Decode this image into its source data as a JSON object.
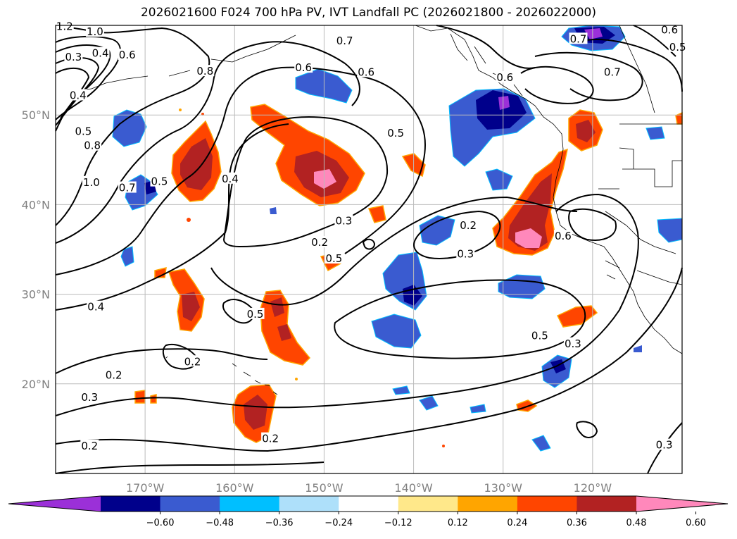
{
  "title": "2026021600 F024 700 hPa PV, IVT Landfall PC (2026021800 - 2026022000)",
  "map": {
    "lon_range": [
      -180,
      -110
    ],
    "lat_range": [
      10,
      60
    ],
    "lat_ticks": [
      {
        "value": 50,
        "label": "50°N"
      },
      {
        "value": 40,
        "label": "40°N"
      },
      {
        "value": 30,
        "label": "30°N"
      },
      {
        "value": 20,
        "label": "20°N"
      }
    ],
    "lon_ticks": [
      {
        "value": -170,
        "label": "170°W"
      },
      {
        "value": -160,
        "label": "160°W"
      },
      {
        "value": -150,
        "label": "150°W"
      },
      {
        "value": -140,
        "label": "140°W"
      },
      {
        "value": -130,
        "label": "130°W"
      },
      {
        "value": -120,
        "label": "120°W"
      }
    ],
    "contour_labels": [
      {
        "text": "1.2",
        "lon": -179,
        "lat": 59.8
      },
      {
        "text": "1.0",
        "lon": -175.6,
        "lat": 59.2
      },
      {
        "text": "0.3",
        "lon": -178,
        "lat": 56.4
      },
      {
        "text": "0.4",
        "lon": -175,
        "lat": 56.8
      },
      {
        "text": "0.6",
        "lon": -172,
        "lat": 56.6
      },
      {
        "text": "0.8",
        "lon": -163.3,
        "lat": 54.8
      },
      {
        "text": "0.6",
        "lon": -152.3,
        "lat": 55.2
      },
      {
        "text": "0.7",
        "lon": -147.7,
        "lat": 58.2
      },
      {
        "text": "0.6",
        "lon": -145.3,
        "lat": 54.7
      },
      {
        "text": "0.5",
        "lon": -142,
        "lat": 47.9
      },
      {
        "text": "0.4",
        "lon": -177.5,
        "lat": 52.1
      },
      {
        "text": "0.5",
        "lon": -176.9,
        "lat": 48.1
      },
      {
        "text": "0.8",
        "lon": -175.9,
        "lat": 46.5
      },
      {
        "text": "1.0",
        "lon": -176,
        "lat": 42.4
      },
      {
        "text": "0.7",
        "lon": -172,
        "lat": 41.8
      },
      {
        "text": "0.5",
        "lon": -168.4,
        "lat": 42.5
      },
      {
        "text": "0.4",
        "lon": -160.5,
        "lat": 42.8
      },
      {
        "text": "0.2",
        "lon": -150.5,
        "lat": 35.7
      },
      {
        "text": "0.3",
        "lon": -147.8,
        "lat": 38.1
      },
      {
        "text": "0.5",
        "lon": -148.9,
        "lat": 33.9
      },
      {
        "text": "0.2",
        "lon": -133.9,
        "lat": 37.6
      },
      {
        "text": "0.3",
        "lon": -134.2,
        "lat": 34.4
      },
      {
        "text": "0.6",
        "lon": -123.3,
        "lat": 36.4
      },
      {
        "text": "0.5",
        "lon": -125.9,
        "lat": 25.3
      },
      {
        "text": "0.3",
        "lon": -122.2,
        "lat": 24.4
      },
      {
        "text": "0.4",
        "lon": -175.5,
        "lat": 28.5
      },
      {
        "text": "0.5",
        "lon": -157.7,
        "lat": 27.7
      },
      {
        "text": "0.2",
        "lon": -173.5,
        "lat": 20.9
      },
      {
        "text": "0.2",
        "lon": -164.7,
        "lat": 22.4
      },
      {
        "text": "0.3",
        "lon": -176.2,
        "lat": 18.4
      },
      {
        "text": "0.2",
        "lon": -176.2,
        "lat": 13
      },
      {
        "text": "0.2",
        "lon": -156,
        "lat": 13.8
      },
      {
        "text": "0.3",
        "lon": -112,
        "lat": 13.1
      },
      {
        "text": "0.5",
        "lon": -110.5,
        "lat": 57.5
      },
      {
        "text": "0.6",
        "lon": -111.4,
        "lat": 59.4
      },
      {
        "text": "0.7",
        "lon": -121.6,
        "lat": 58.4
      },
      {
        "text": "0.7",
        "lon": -117.8,
        "lat": 54.7
      },
      {
        "text": "0.6",
        "lon": -129.8,
        "lat": 54.1
      }
    ]
  },
  "colorbar": {
    "colors": [
      "#9b30d8",
      "#00008b",
      "#3a5bd0",
      "#00bfff",
      "#aee0fa",
      "#ffffff",
      "#ffe88a",
      "#ffa500",
      "#ff4500",
      "#b22222",
      "#ff88bb"
    ],
    "ticks": [
      "−0.60",
      "−0.48",
      "−0.36",
      "−0.24",
      "−0.12",
      "0.12",
      "0.24",
      "0.36",
      "0.48",
      "0.60"
    ]
  }
}
